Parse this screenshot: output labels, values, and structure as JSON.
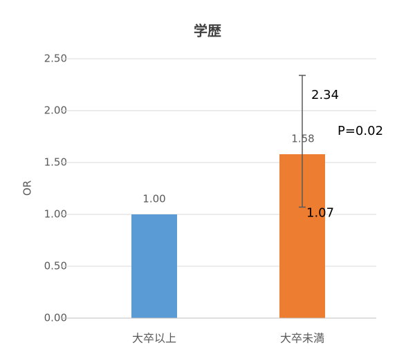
{
  "chart_data": {
    "type": "bar",
    "title": "学歴",
    "y_label": "OR",
    "categories": [
      "大卒以上",
      "大卒未満"
    ],
    "values": [
      1.0,
      1.58
    ],
    "value_labels": [
      "1.00",
      "1.58"
    ],
    "colors": [
      "#5b9bd5",
      "#ed7d31"
    ],
    "ci_low": [
      null,
      1.07
    ],
    "ci_high": [
      null,
      2.34
    ],
    "annotation": "P=0.02",
    "ylim": [
      0,
      2.5
    ],
    "yticks": [
      {
        "value": 0,
        "label": "0.00"
      },
      {
        "value": 0.5,
        "label": "0.50"
      },
      {
        "value": 1,
        "label": "1.00"
      },
      {
        "value": 1.5,
        "label": "1.50"
      },
      {
        "value": 2,
        "label": "2.00"
      },
      {
        "value": 2.5,
        "label": "2.50"
      }
    ],
    "grid": true
  }
}
